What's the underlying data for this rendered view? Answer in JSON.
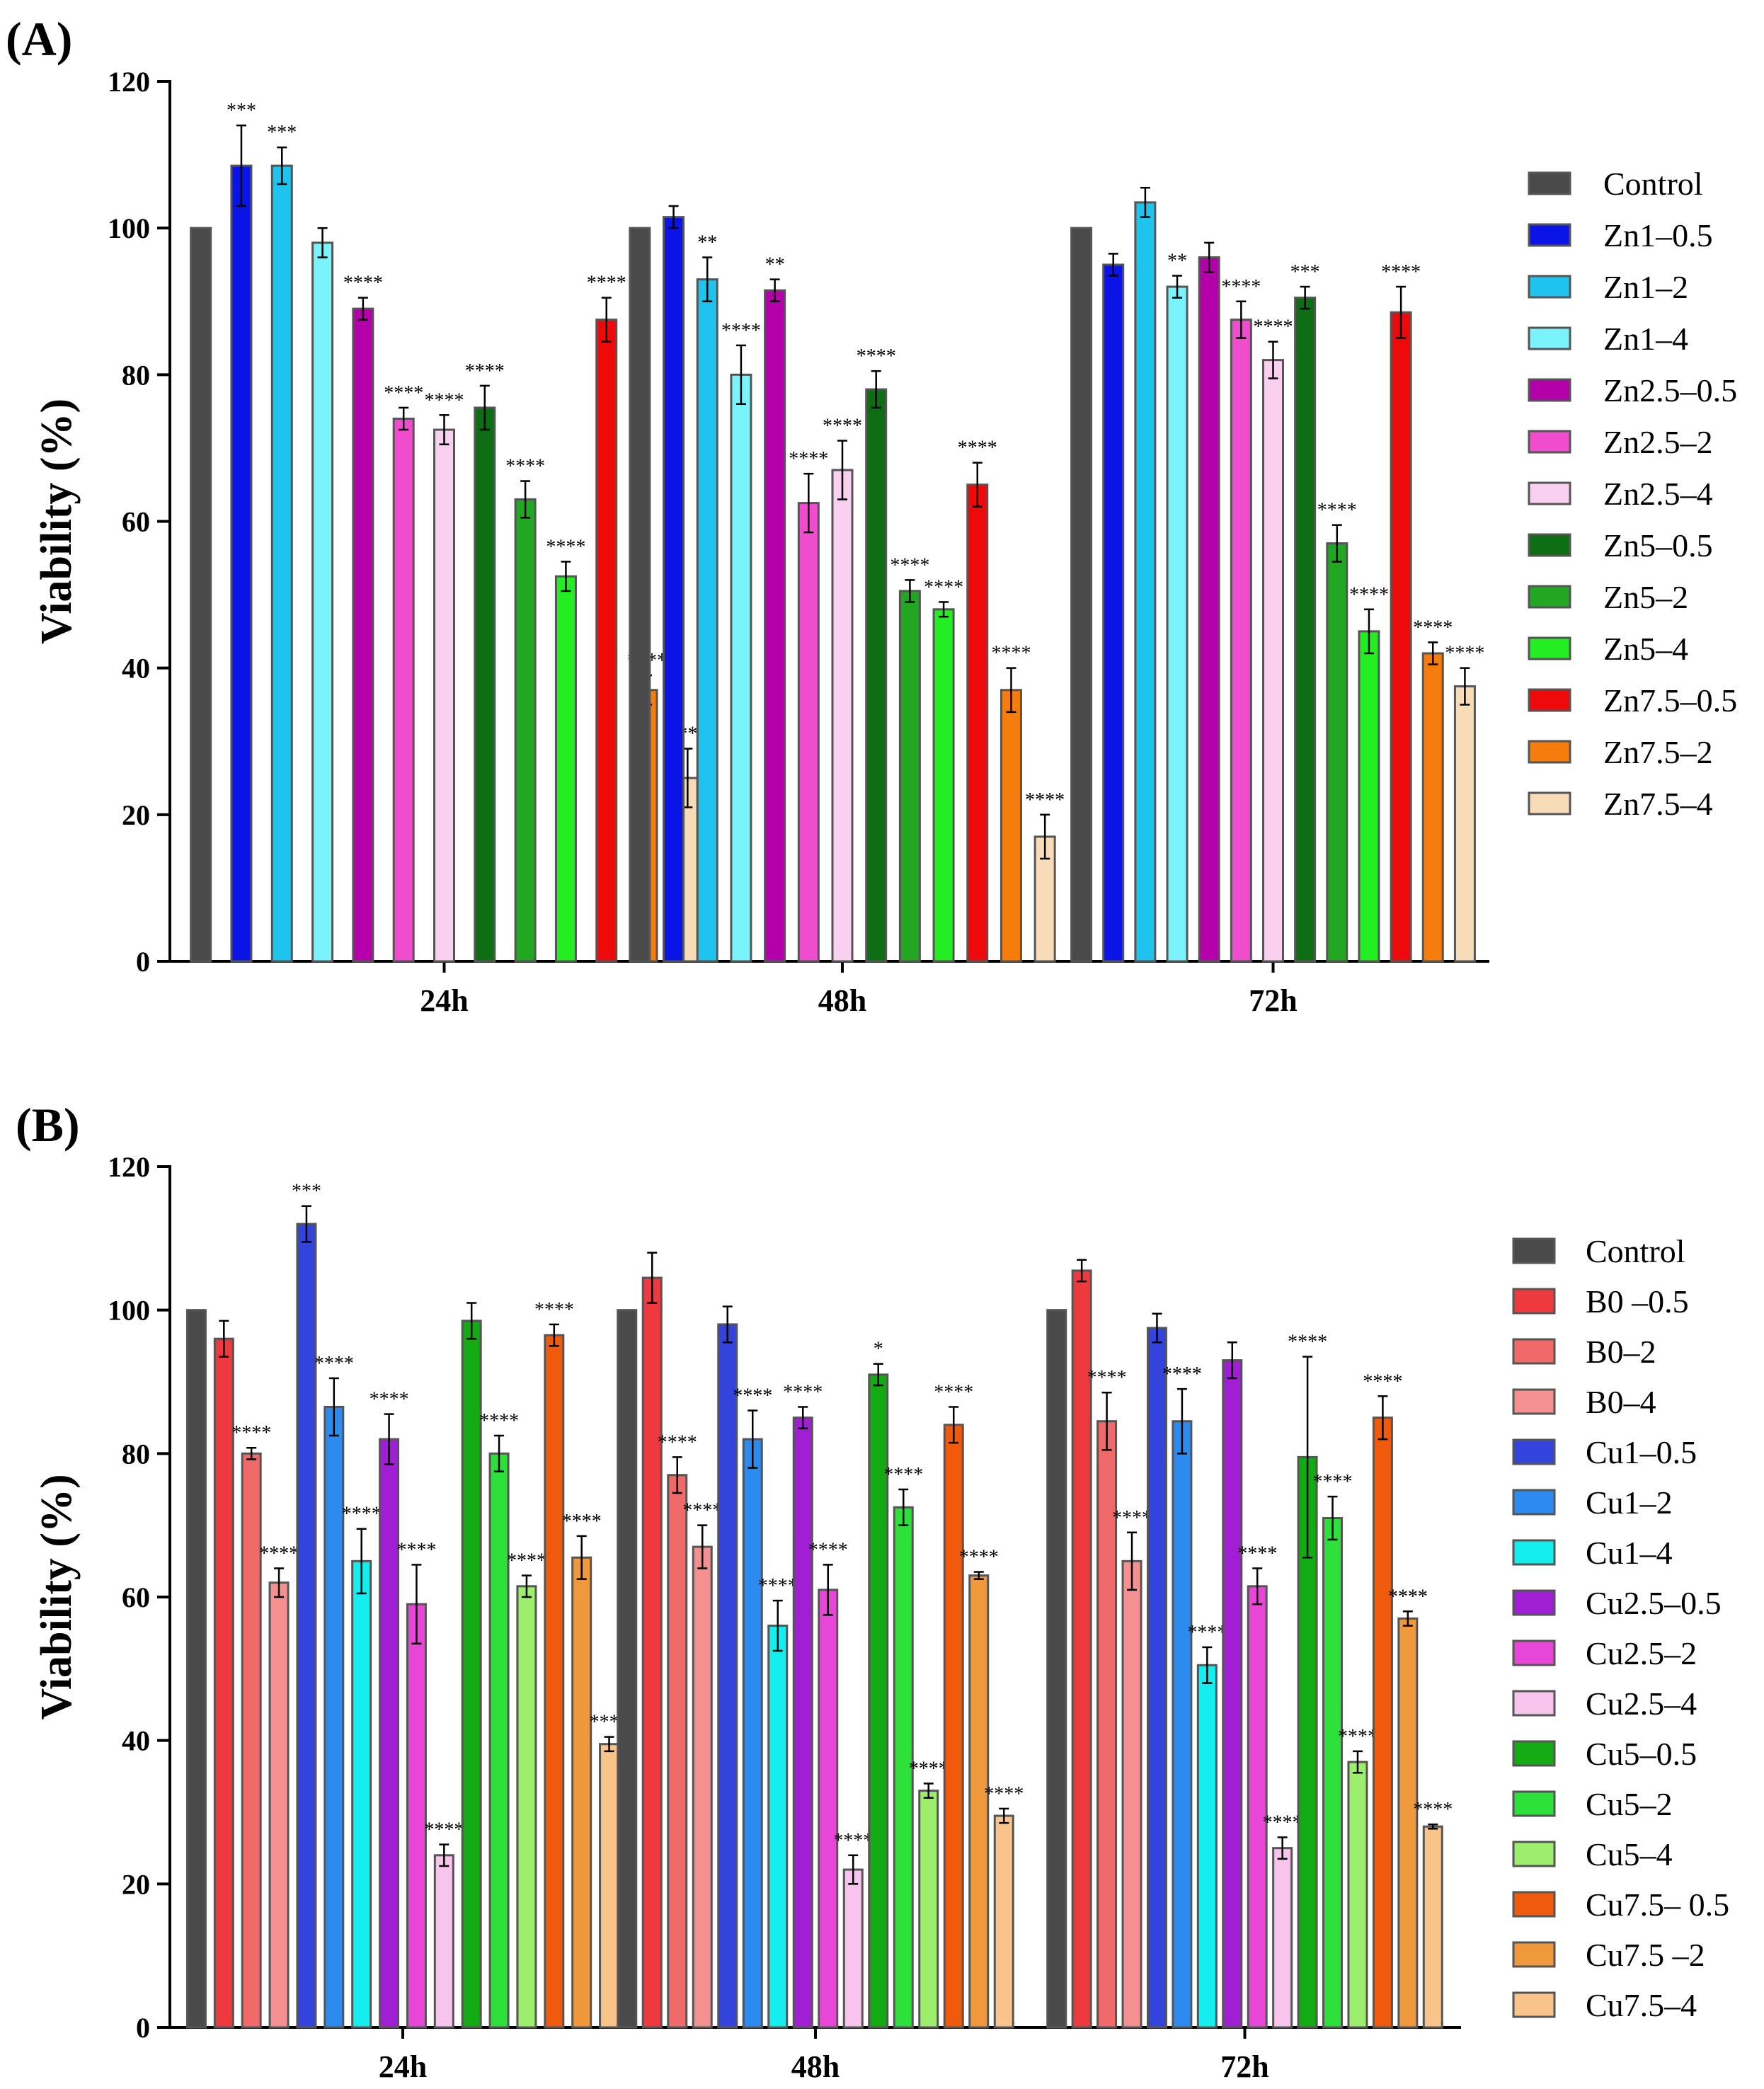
{
  "chart_data": [
    {
      "type": "bar",
      "panel_label": "(A)",
      "ylabel": "Viability (%)",
      "xlabel": "",
      "ylim": [
        0,
        120
      ],
      "yticks": [
        "0",
        "20",
        "40",
        "60",
        "80",
        "100",
        "120"
      ],
      "categories": [
        "24h",
        "48h",
        "72h"
      ],
      "legend_position": "right",
      "series": [
        {
          "name": "Control",
          "color": "#4a4a4a",
          "values": [
            100,
            100,
            100
          ],
          "errors": [
            0,
            0,
            0
          ],
          "sig": [
            "",
            "",
            ""
          ]
        },
        {
          "name": "Zn1–0.5",
          "color": "#0a14e6",
          "values": [
            108.5,
            101.5,
            95
          ],
          "errors": [
            5.5,
            1.5,
            1.5
          ],
          "sig": [
            "***",
            "",
            ""
          ]
        },
        {
          "name": "Zn1–2",
          "color": "#1ec4ee",
          "values": [
            108.5,
            93,
            103.5
          ],
          "errors": [
            2.5,
            3,
            2
          ],
          "sig": [
            "***",
            "**",
            ""
          ]
        },
        {
          "name": "Zn1–4",
          "color": "#7af4fa",
          "values": [
            98,
            80,
            92
          ],
          "errors": [
            2,
            4,
            1.5
          ],
          "sig": [
            "",
            "****",
            "**"
          ]
        },
        {
          "name": "Zn2.5–0.5",
          "color": "#b400aa",
          "values": [
            89,
            91.5,
            96
          ],
          "errors": [
            1.5,
            1.5,
            2
          ],
          "sig": [
            "****",
            "**",
            ""
          ]
        },
        {
          "name": "Zn2.5–2",
          "color": "#f04cce",
          "values": [
            74,
            62.5,
            87.5
          ],
          "errors": [
            1.5,
            4,
            2.5
          ],
          "sig": [
            "****",
            "****",
            "****"
          ]
        },
        {
          "name": "Zn2.5–4",
          "color": "#fad0f0",
          "values": [
            72.5,
            67,
            82
          ],
          "errors": [
            2,
            4,
            2.5
          ],
          "sig": [
            "****",
            "****",
            "****"
          ]
        },
        {
          "name": "Zn5–0.5",
          "color": "#0e6e14",
          "values": [
            75.5,
            78,
            90.5
          ],
          "errors": [
            3,
            2.5,
            1.5
          ],
          "sig": [
            "****",
            "****",
            "***"
          ]
        },
        {
          "name": "Zn5–2",
          "color": "#22a722",
          "values": [
            63,
            50.5,
            57
          ],
          "errors": [
            2.5,
            1.5,
            2.5
          ],
          "sig": [
            "****",
            "****",
            "****"
          ]
        },
        {
          "name": "Zn5–4",
          "color": "#22ee22",
          "values": [
            52.5,
            48,
            45
          ],
          "errors": [
            2,
            1,
            3
          ],
          "sig": [
            "****",
            "****",
            "****"
          ]
        },
        {
          "name": "Zn7.5–0.5",
          "color": "#ee0a0a",
          "values": [
            87.5,
            65,
            88.5
          ],
          "errors": [
            3,
            3,
            3.5
          ],
          "sig": [
            "****",
            "****",
            "****"
          ]
        },
        {
          "name": "Zn7.5–2",
          "color": "#f57d0c",
          "values": [
            37,
            37,
            42
          ],
          "errors": [
            2,
            3,
            1.5
          ],
          "sig": [
            "****",
            "****",
            "****"
          ]
        },
        {
          "name": "Zn7.5–4",
          "color": "#f8dcb8",
          "values": [
            25,
            17,
            37.5
          ],
          "errors": [
            4,
            3,
            2.5
          ],
          "sig": [
            "****",
            "****",
            "****"
          ]
        }
      ]
    },
    {
      "type": "bar",
      "panel_label": "(B)",
      "ylabel": "Viability (%)",
      "xlabel": "",
      "ylim": [
        0,
        120
      ],
      "yticks": [
        "0",
        "20",
        "40",
        "60",
        "80",
        "100",
        "120"
      ],
      "categories": [
        "24h",
        "48h",
        "72h"
      ],
      "legend_position": "right",
      "series": [
        {
          "name": "Control",
          "color": "#4a4a4a",
          "values": [
            100,
            100,
            100
          ],
          "errors": [
            0,
            0,
            0
          ],
          "sig": [
            "",
            "",
            ""
          ]
        },
        {
          "name": "B0 –0.5",
          "color": "#ee3a3e",
          "values": [
            96,
            104.5,
            105.5
          ],
          "errors": [
            2.5,
            3.5,
            1.5
          ],
          "sig": [
            "",
            "",
            ""
          ]
        },
        {
          "name": "B0–2",
          "color": "#f06a6a",
          "values": [
            80,
            77,
            84.5
          ],
          "errors": [
            0.8,
            2.5,
            4
          ],
          "sig": [
            "****",
            "****",
            "****"
          ]
        },
        {
          "name": "B0–4",
          "color": "#f49090",
          "values": [
            62,
            67,
            65
          ],
          "errors": [
            2,
            3,
            4
          ],
          "sig": [
            "****",
            "****",
            "****"
          ]
        },
        {
          "name": "Cu1–0.5",
          "color": "#3244dc",
          "values": [
            112,
            98,
            97.5
          ],
          "errors": [
            2.5,
            2.5,
            2
          ],
          "sig": [
            "***",
            "",
            ""
          ]
        },
        {
          "name": "Cu1–2",
          "color": "#2d8aee",
          "values": [
            86.5,
            82,
            84.5
          ],
          "errors": [
            4,
            4,
            4.5
          ],
          "sig": [
            "****",
            "****",
            "****"
          ]
        },
        {
          "name": "Cu1–4",
          "color": "#14eeee",
          "values": [
            65,
            56,
            50.5
          ],
          "errors": [
            4.5,
            3.5,
            2.5
          ],
          "sig": [
            "****",
            "****",
            "****"
          ]
        },
        {
          "name": "Cu2.5–0.5",
          "color": "#a01ed4",
          "values": [
            82,
            85,
            93
          ],
          "errors": [
            3.5,
            1.5,
            2.5
          ],
          "sig": [
            "****",
            "****",
            ""
          ]
        },
        {
          "name": "Cu2.5–2",
          "color": "#e846d6",
          "values": [
            59,
            61,
            61.5
          ],
          "errors": [
            5.5,
            3.5,
            2.5
          ],
          "sig": [
            "****",
            "****",
            "****"
          ]
        },
        {
          "name": "Cu2.5–4",
          "color": "#f6c4ec",
          "values": [
            24,
            22,
            25
          ],
          "errors": [
            1.5,
            2,
            1.5
          ],
          "sig": [
            "****",
            "****",
            "****"
          ]
        },
        {
          "name": "Cu5–0.5",
          "color": "#14aa14",
          "values": [
            98.5,
            91,
            79.5
          ],
          "errors": [
            2.5,
            1.5,
            14
          ],
          "sig": [
            "",
            "*",
            "****"
          ]
        },
        {
          "name": "Cu5–2",
          "color": "#2ee03a",
          "values": [
            80,
            72.5,
            71
          ],
          "errors": [
            2.5,
            2.5,
            3
          ],
          "sig": [
            "****",
            "****",
            "****"
          ]
        },
        {
          "name": "Cu5–4",
          "color": "#9eee6e",
          "values": [
            61.5,
            33,
            37
          ],
          "errors": [
            1.5,
            1,
            1.5
          ],
          "sig": [
            "****",
            "****",
            "****"
          ]
        },
        {
          "name": "Cu7.5– 0.5",
          "color": "#f05a0c",
          "values": [
            96.5,
            84,
            85
          ],
          "errors": [
            1.5,
            2.5,
            3
          ],
          "sig": [
            "****",
            "****",
            "****"
          ]
        },
        {
          "name": "Cu7.5 –2",
          "color": "#f0983c",
          "values": [
            65.5,
            63,
            57
          ],
          "errors": [
            3,
            0.5,
            1
          ],
          "sig": [
            "****",
            "****",
            "****"
          ]
        },
        {
          "name": "Cu7.5–4",
          "color": "#f8c48a",
          "values": [
            39.5,
            29.5,
            28
          ],
          "errors": [
            1,
            1,
            0.3
          ],
          "sig": [
            "****",
            "****",
            "****"
          ]
        }
      ]
    }
  ]
}
